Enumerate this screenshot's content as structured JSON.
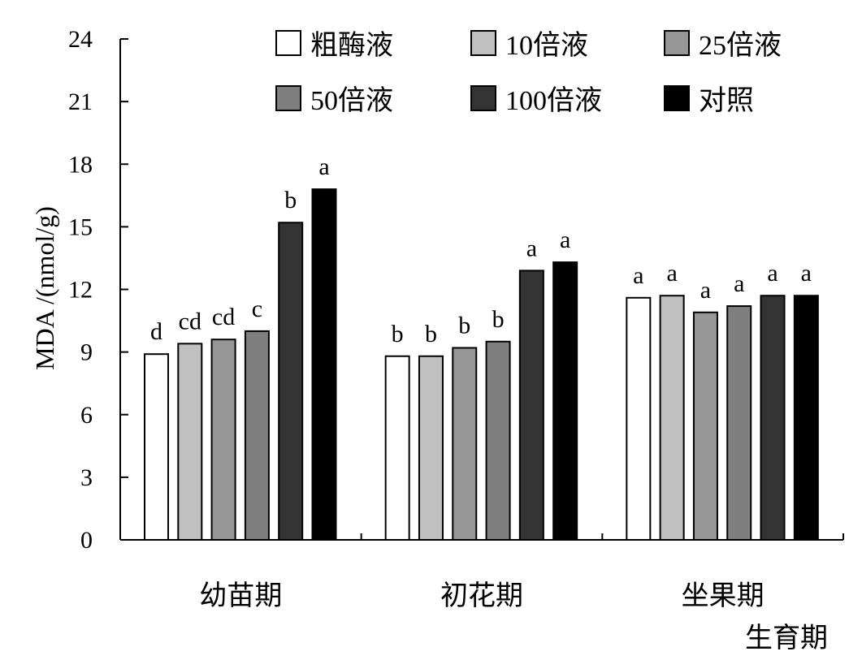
{
  "chart_data": {
    "type": "bar",
    "ylabel": "MDA /(nmol/g)",
    "xlabel": "生育期",
    "ylim": [
      0,
      24
    ],
    "yticks": [
      0,
      3,
      6,
      9,
      12,
      15,
      18,
      21,
      24
    ],
    "categories": [
      "幼苗期",
      "初花期",
      "坐果期"
    ],
    "series": [
      {
        "name": "粗酶液",
        "color": "#ffffff",
        "values": [
          8.9,
          8.8,
          11.6
        ],
        "letters": [
          "d",
          "b",
          "a"
        ]
      },
      {
        "name": "10倍液",
        "color": "#c0c0c0",
        "values": [
          9.4,
          8.8,
          11.7
        ],
        "letters": [
          "cd",
          "b",
          "a"
        ]
      },
      {
        "name": "25倍液",
        "color": "#969696",
        "values": [
          9.6,
          9.2,
          10.9
        ],
        "letters": [
          "cd",
          "b",
          "a"
        ]
      },
      {
        "name": "50倍液",
        "color": "#7f7f7f",
        "values": [
          10.0,
          9.5,
          11.2
        ],
        "letters": [
          "c",
          "b",
          "a"
        ]
      },
      {
        "name": "100倍液",
        "color": "#333333",
        "values": [
          15.2,
          12.9,
          11.7
        ],
        "letters": [
          "b",
          "a",
          "a"
        ]
      },
      {
        "name": "对照",
        "color": "#000000",
        "values": [
          16.8,
          13.3,
          11.7
        ],
        "letters": [
          "a",
          "a",
          "a"
        ]
      }
    ],
    "legend_position": "top-right"
  }
}
